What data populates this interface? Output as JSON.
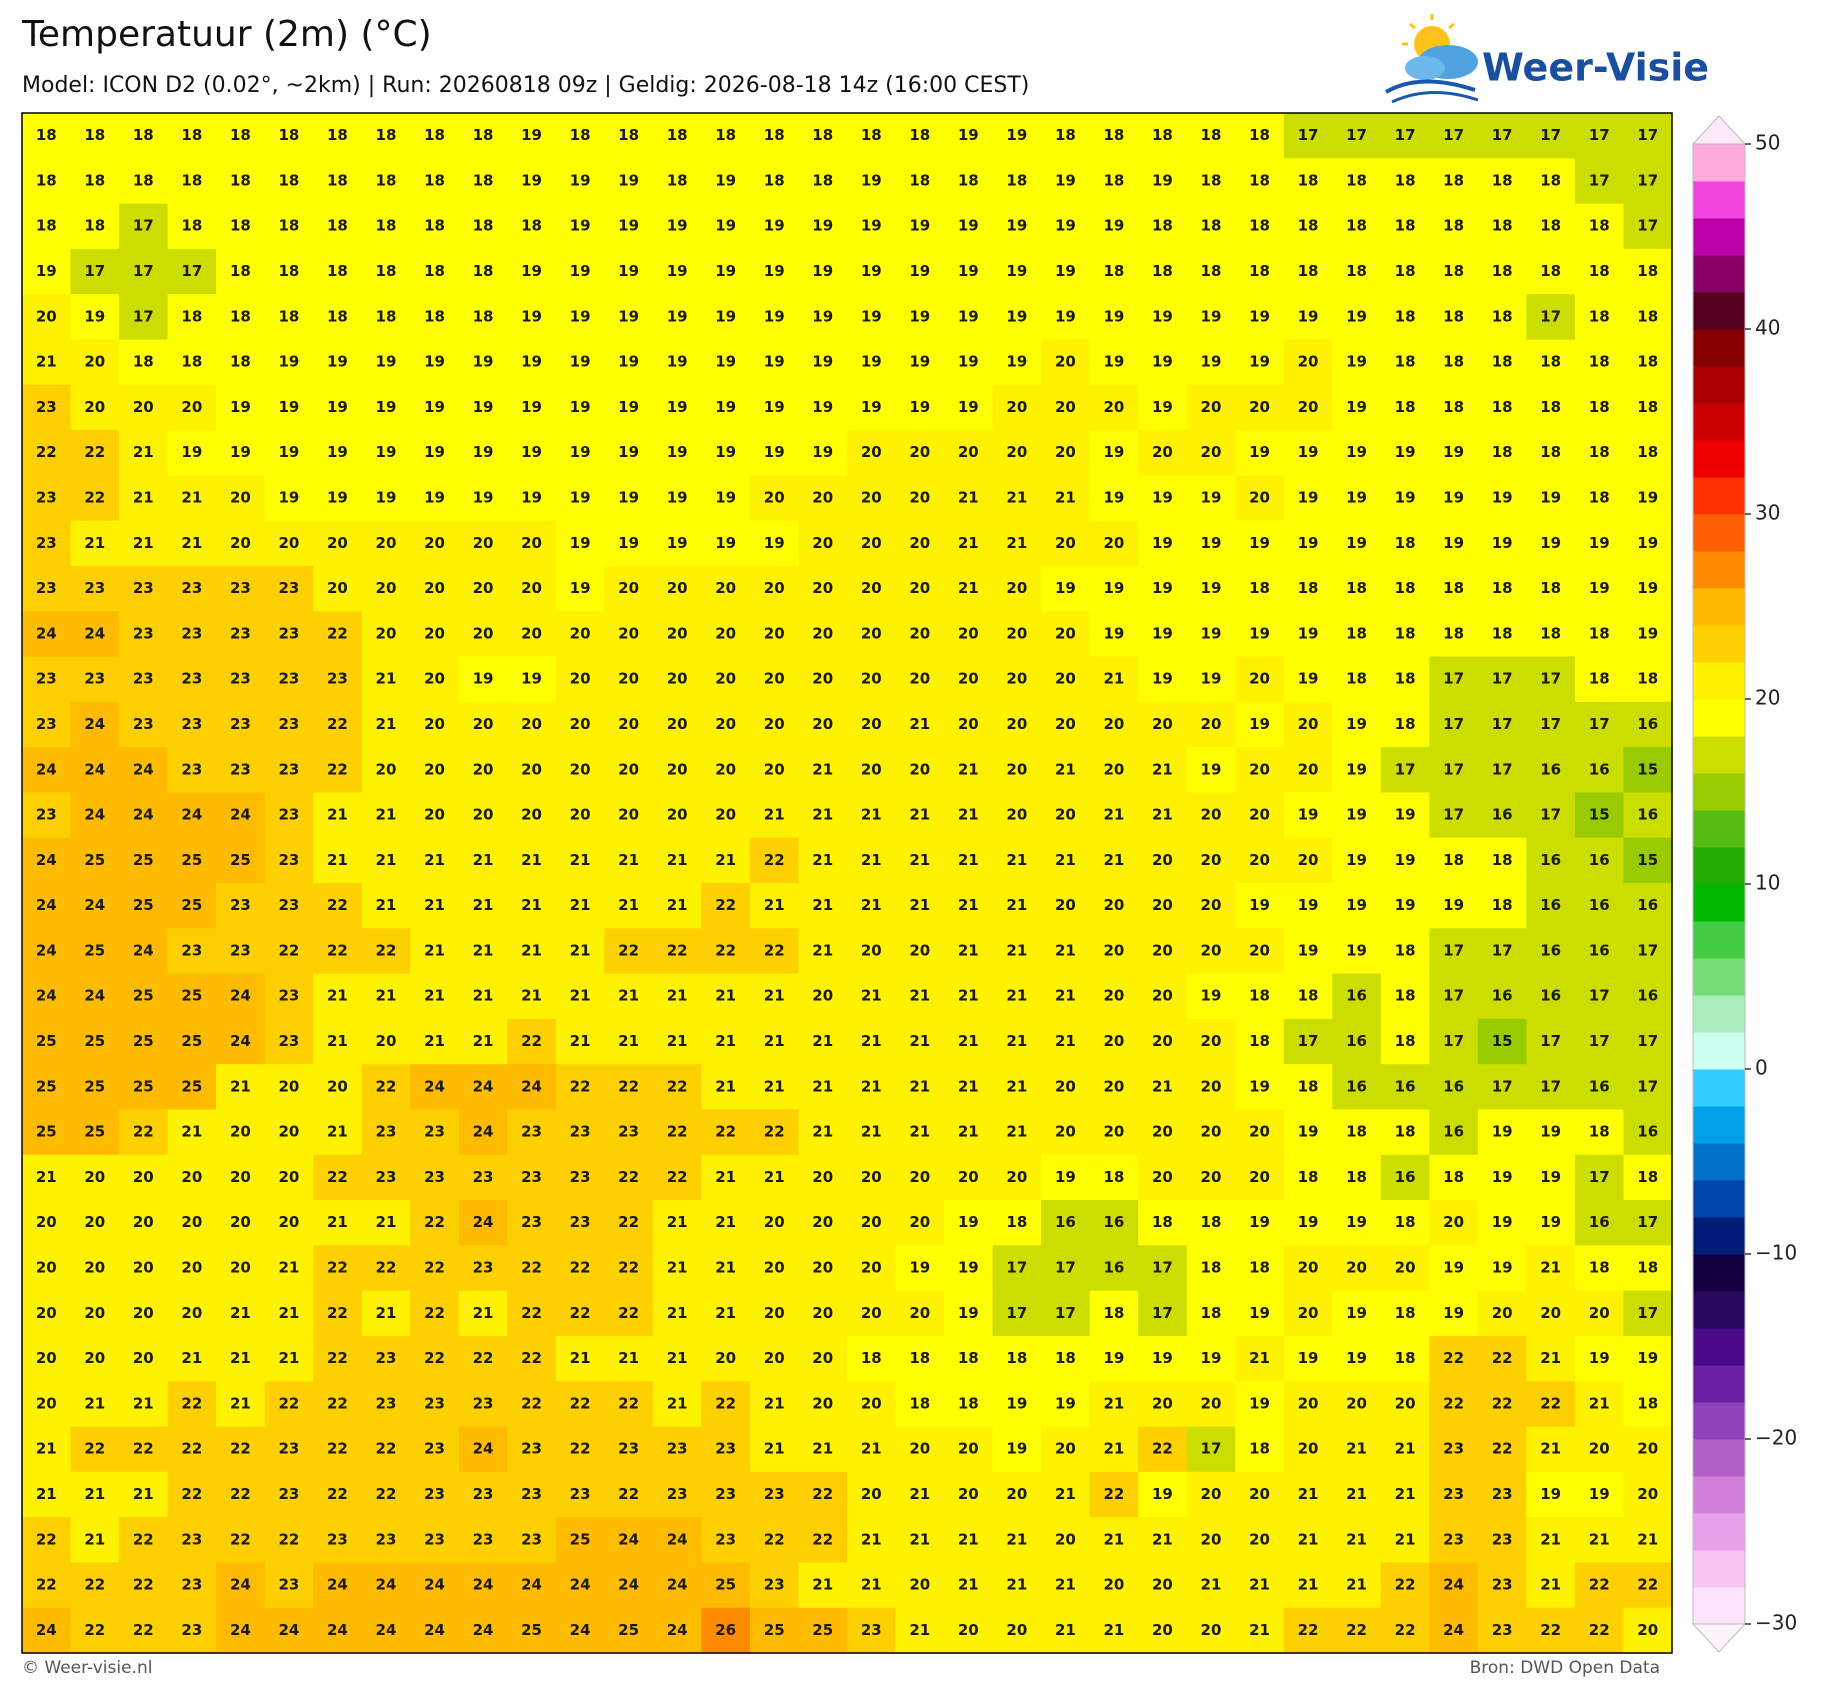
{
  "header": {
    "title": "Temperatuur (2m) (°C)",
    "subtitle": "Model: ICON D2 (0.02°, ~2km)  |  Run: 20260818 09z  |  Geldig: 2026-08-18 14z (16:00 CEST)",
    "logo": "Weer-Visie"
  },
  "map": {
    "rows": [
      [
        18,
        18,
        18,
        18,
        18,
        18,
        18,
        18,
        18,
        18,
        19,
        18,
        18,
        18,
        18,
        18,
        18,
        18,
        18,
        19,
        19,
        18,
        18,
        18,
        18,
        18,
        17,
        17,
        17,
        17,
        17,
        17,
        17,
        17
      ],
      [
        18,
        18,
        18,
        18,
        18,
        18,
        18,
        18,
        18,
        18,
        19,
        19,
        19,
        18,
        19,
        18,
        18,
        19,
        18,
        18,
        18,
        19,
        18,
        19,
        18,
        18,
        18,
        18,
        18,
        18,
        18,
        18,
        17,
        17
      ],
      [
        18,
        18,
        17,
        18,
        18,
        18,
        18,
        18,
        18,
        18,
        18,
        19,
        19,
        19,
        19,
        19,
        19,
        19,
        19,
        19,
        19,
        19,
        19,
        18,
        18,
        18,
        18,
        18,
        18,
        18,
        18,
        18,
        18,
        17
      ],
      [
        19,
        17,
        17,
        17,
        18,
        18,
        18,
        18,
        18,
        18,
        19,
        19,
        19,
        19,
        19,
        19,
        19,
        19,
        19,
        19,
        19,
        19,
        18,
        18,
        18,
        18,
        18,
        18,
        18,
        18,
        18,
        18,
        18,
        18
      ],
      [
        20,
        19,
        17,
        18,
        18,
        18,
        18,
        18,
        18,
        18,
        19,
        19,
        19,
        19,
        19,
        19,
        19,
        19,
        19,
        19,
        19,
        19,
        19,
        19,
        19,
        19,
        19,
        19,
        18,
        18,
        18,
        17,
        18,
        18
      ],
      [
        21,
        20,
        18,
        18,
        18,
        19,
        19,
        19,
        19,
        19,
        19,
        19,
        19,
        19,
        19,
        19,
        19,
        19,
        19,
        19,
        19,
        20,
        19,
        19,
        19,
        19,
        20,
        19,
        18,
        18,
        18,
        18,
        18,
        18
      ],
      [
        23,
        20,
        20,
        20,
        19,
        19,
        19,
        19,
        19,
        19,
        19,
        19,
        19,
        19,
        19,
        19,
        19,
        19,
        19,
        19,
        20,
        20,
        20,
        19,
        20,
        20,
        20,
        19,
        18,
        18,
        18,
        18,
        18,
        18
      ],
      [
        22,
        22,
        21,
        19,
        19,
        19,
        19,
        19,
        19,
        19,
        19,
        19,
        19,
        19,
        19,
        19,
        19,
        20,
        20,
        20,
        20,
        20,
        19,
        20,
        20,
        19,
        19,
        19,
        19,
        19,
        18,
        18,
        18,
        18
      ],
      [
        23,
        22,
        21,
        21,
        20,
        19,
        19,
        19,
        19,
        19,
        19,
        19,
        19,
        19,
        19,
        20,
        20,
        20,
        20,
        21,
        21,
        21,
        19,
        19,
        19,
        20,
        19,
        19,
        19,
        19,
        19,
        19,
        18,
        19
      ],
      [
        23,
        21,
        21,
        21,
        20,
        20,
        20,
        20,
        20,
        20,
        20,
        19,
        19,
        19,
        19,
        19,
        20,
        20,
        20,
        21,
        21,
        20,
        20,
        19,
        19,
        19,
        19,
        19,
        18,
        19,
        19,
        19,
        19,
        19
      ],
      [
        23,
        23,
        23,
        23,
        23,
        23,
        20,
        20,
        20,
        20,
        20,
        19,
        20,
        20,
        20,
        20,
        20,
        20,
        20,
        21,
        20,
        19,
        19,
        19,
        19,
        18,
        18,
        18,
        18,
        18,
        18,
        18,
        19,
        19
      ],
      [
        24,
        24,
        23,
        23,
        23,
        23,
        22,
        20,
        20,
        20,
        20,
        20,
        20,
        20,
        20,
        20,
        20,
        20,
        20,
        20,
        20,
        20,
        19,
        19,
        19,
        19,
        19,
        18,
        18,
        18,
        18,
        18,
        18,
        19
      ],
      [
        23,
        23,
        23,
        23,
        23,
        23,
        23,
        21,
        20,
        19,
        19,
        20,
        20,
        20,
        20,
        20,
        20,
        20,
        20,
        20,
        20,
        20,
        21,
        19,
        19,
        20,
        19,
        18,
        18,
        17,
        17,
        17,
        18,
        18
      ],
      [
        23,
        24,
        23,
        23,
        23,
        23,
        22,
        21,
        20,
        20,
        20,
        20,
        20,
        20,
        20,
        20,
        20,
        20,
        21,
        20,
        20,
        20,
        20,
        20,
        20,
        19,
        20,
        19,
        18,
        17,
        17,
        17,
        17,
        16
      ],
      [
        24,
        24,
        24,
        23,
        23,
        23,
        22,
        20,
        20,
        20,
        20,
        20,
        20,
        20,
        20,
        20,
        21,
        20,
        20,
        21,
        20,
        21,
        20,
        21,
        19,
        20,
        20,
        19,
        17,
        17,
        17,
        16,
        16,
        15
      ],
      [
        23,
        24,
        24,
        24,
        24,
        23,
        21,
        21,
        20,
        20,
        20,
        20,
        20,
        20,
        20,
        21,
        21,
        21,
        21,
        21,
        20,
        20,
        21,
        21,
        20,
        20,
        19,
        19,
        19,
        17,
        16,
        17,
        15,
        16
      ],
      [
        24,
        25,
        25,
        25,
        25,
        23,
        21,
        21,
        21,
        21,
        21,
        21,
        21,
        21,
        21,
        22,
        21,
        21,
        21,
        21,
        21,
        21,
        21,
        20,
        20,
        20,
        20,
        19,
        19,
        18,
        18,
        16,
        16,
        15
      ],
      [
        24,
        24,
        25,
        25,
        23,
        23,
        22,
        21,
        21,
        21,
        21,
        21,
        21,
        21,
        22,
        21,
        21,
        21,
        21,
        21,
        21,
        20,
        20,
        20,
        20,
        19,
        19,
        19,
        19,
        19,
        18,
        16,
        16,
        16
      ],
      [
        24,
        25,
        24,
        23,
        23,
        22,
        22,
        22,
        21,
        21,
        21,
        21,
        22,
        22,
        22,
        22,
        21,
        20,
        20,
        21,
        21,
        21,
        20,
        20,
        20,
        20,
        19,
        19,
        18,
        17,
        17,
        16,
        16,
        17
      ],
      [
        24,
        24,
        25,
        25,
        24,
        23,
        21,
        21,
        21,
        21,
        21,
        21,
        21,
        21,
        21,
        21,
        20,
        21,
        21,
        21,
        21,
        21,
        20,
        20,
        19,
        18,
        18,
        16,
        18,
        17,
        16,
        16,
        17,
        16
      ],
      [
        25,
        25,
        25,
        25,
        24,
        23,
        21,
        20,
        21,
        21,
        22,
        21,
        21,
        21,
        21,
        21,
        21,
        21,
        21,
        21,
        21,
        21,
        20,
        20,
        20,
        18,
        17,
        16,
        18,
        17,
        15,
        17,
        17,
        17
      ],
      [
        25,
        25,
        25,
        25,
        21,
        20,
        20,
        22,
        24,
        24,
        24,
        22,
        22,
        22,
        21,
        21,
        21,
        21,
        21,
        21,
        21,
        20,
        20,
        21,
        20,
        19,
        18,
        16,
        16,
        16,
        17,
        17,
        16,
        17
      ],
      [
        25,
        25,
        22,
        21,
        20,
        20,
        21,
        23,
        23,
        24,
        23,
        23,
        23,
        22,
        22,
        22,
        21,
        21,
        21,
        21,
        21,
        20,
        20,
        20,
        20,
        20,
        19,
        18,
        18,
        16,
        19,
        19,
        18,
        16
      ],
      [
        21,
        20,
        20,
        20,
        20,
        20,
        22,
        23,
        23,
        23,
        23,
        23,
        22,
        22,
        21,
        21,
        20,
        20,
        20,
        20,
        20,
        19,
        18,
        20,
        20,
        20,
        18,
        18,
        16,
        18,
        19,
        19,
        17,
        18
      ],
      [
        20,
        20,
        20,
        20,
        20,
        20,
        21,
        21,
        22,
        24,
        23,
        23,
        22,
        21,
        21,
        20,
        20,
        20,
        20,
        19,
        18,
        16,
        16,
        18,
        18,
        19,
        19,
        19,
        18,
        20,
        19,
        19,
        16,
        17
      ],
      [
        20,
        20,
        20,
        20,
        20,
        21,
        22,
        22,
        22,
        23,
        22,
        22,
        22,
        21,
        21,
        20,
        20,
        20,
        19,
        19,
        17,
        17,
        16,
        17,
        18,
        18,
        20,
        20,
        20,
        19,
        19,
        21,
        18,
        18
      ],
      [
        20,
        20,
        20,
        20,
        21,
        21,
        22,
        21,
        22,
        21,
        22,
        22,
        22,
        21,
        21,
        20,
        20,
        20,
        20,
        19,
        17,
        17,
        18,
        17,
        18,
        19,
        20,
        19,
        18,
        19,
        20,
        20,
        20,
        17
      ],
      [
        20,
        20,
        20,
        21,
        21,
        21,
        22,
        23,
        22,
        22,
        22,
        21,
        21,
        21,
        20,
        20,
        20,
        18,
        18,
        18,
        18,
        18,
        19,
        19,
        19,
        21,
        19,
        19,
        18,
        22,
        22,
        21,
        19,
        19
      ],
      [
        20,
        21,
        21,
        22,
        21,
        22,
        22,
        23,
        23,
        23,
        22,
        22,
        22,
        21,
        22,
        21,
        20,
        20,
        18,
        18,
        19,
        19,
        21,
        20,
        20,
        19,
        20,
        20,
        20,
        22,
        22,
        22,
        21,
        18
      ],
      [
        21,
        22,
        22,
        22,
        22,
        23,
        22,
        22,
        23,
        24,
        23,
        22,
        23,
        23,
        23,
        21,
        21,
        21,
        20,
        20,
        19,
        20,
        21,
        22,
        17,
        18,
        20,
        21,
        21,
        23,
        22,
        21,
        20,
        20
      ],
      [
        21,
        21,
        21,
        22,
        22,
        23,
        22,
        22,
        23,
        23,
        23,
        23,
        22,
        23,
        23,
        23,
        22,
        20,
        21,
        20,
        20,
        21,
        22,
        19,
        20,
        20,
        21,
        21,
        21,
        23,
        23,
        19,
        19,
        20
      ],
      [
        22,
        21,
        22,
        23,
        22,
        22,
        23,
        23,
        23,
        23,
        23,
        25,
        24,
        24,
        23,
        22,
        22,
        21,
        21,
        21,
        21,
        20,
        21,
        21,
        20,
        20,
        21,
        21,
        21,
        23,
        23,
        21,
        21,
        21
      ],
      [
        22,
        22,
        22,
        23,
        24,
        23,
        24,
        24,
        24,
        24,
        24,
        24,
        24,
        24,
        25,
        23,
        21,
        21,
        20,
        21,
        21,
        21,
        20,
        20,
        21,
        21,
        21,
        21,
        22,
        24,
        23,
        21,
        22,
        22
      ],
      [
        24,
        22,
        22,
        23,
        24,
        24,
        24,
        24,
        24,
        24,
        25,
        24,
        25,
        24,
        26,
        25,
        25,
        23,
        21,
        20,
        20,
        21,
        21,
        20,
        20,
        21,
        22,
        22,
        22,
        24,
        23,
        22,
        22,
        20
      ]
    ]
  },
  "colorbar": {
    "lim": [
      -30,
      50
    ],
    "ticks": [
      50,
      40,
      30,
      20,
      10,
      0,
      {
        "value": -10,
        "label": "−10"
      },
      {
        "value": -20,
        "label": "−20"
      },
      {
        "value": -30,
        "label": "−30"
      }
    ],
    "colors": [
      "#fde4fa",
      "#f8c4f2",
      "#e8a0e8",
      "#d080d8",
      "#b060c8",
      "#9040b8",
      "#6a1fa0",
      "#4a0a8a",
      "#2a0a60",
      "#140040",
      "#001c78",
      "#0044a8",
      "#0070c8",
      "#00a0e6",
      "#33ccff",
      "#ccffee",
      "#aaeebb",
      "#77dd77",
      "#44cc44",
      "#00b800",
      "#22aa00",
      "#55bb10",
      "#99cc00",
      "#ccdd00",
      "#ffff00",
      "#fff200",
      "#ffd000",
      "#ffbb00",
      "#ff8c00",
      "#ff5f00",
      "#ff3000",
      "#ee0000",
      "#cc0000",
      "#aa0000",
      "#880000",
      "#550022",
      "#880066",
      "#bb00aa",
      "#ee44dd",
      "#ffaadd"
    ],
    "under": "#fff4fd",
    "over": "#ffe8f8"
  },
  "footer": {
    "left": "© Weer-visie.nl",
    "right": "Bron: DWD Open Data"
  }
}
